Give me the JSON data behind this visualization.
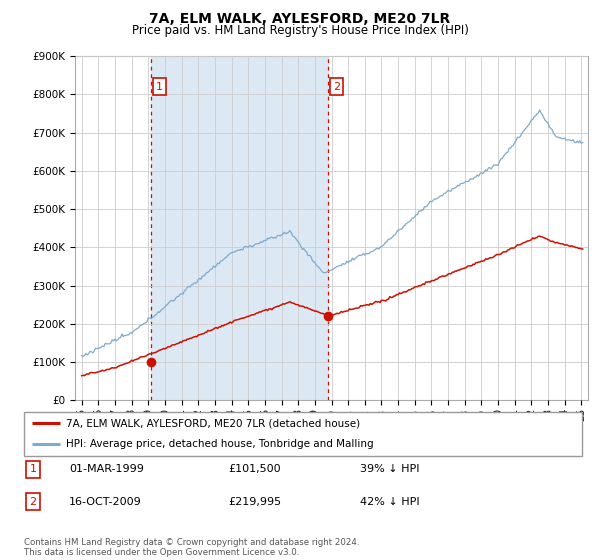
{
  "title": "7A, ELM WALK, AYLESFORD, ME20 7LR",
  "subtitle": "Price paid vs. HM Land Registry's House Price Index (HPI)",
  "ylim": [
    0,
    900000
  ],
  "yticks": [
    0,
    100000,
    200000,
    300000,
    400000,
    500000,
    600000,
    700000,
    800000,
    900000
  ],
  "ytick_labels": [
    "£0",
    "£100K",
    "£200K",
    "£300K",
    "£400K",
    "£500K",
    "£600K",
    "£700K",
    "£800K",
    "£900K"
  ],
  "hpi_color": "#7eaacc",
  "hpi_fill_color": "#dce9f5",
  "price_color": "#cc1100",
  "bg_color": "#ffffff",
  "grid_color": "#cccccc",
  "transactions": [
    {
      "date_num": 1999.17,
      "price": 101500,
      "label": "1"
    },
    {
      "date_num": 2009.79,
      "price": 219995,
      "label": "2"
    }
  ],
  "legend_entries": [
    {
      "label": "7A, ELM WALK, AYLESFORD, ME20 7LR (detached house)",
      "color": "#cc1100"
    },
    {
      "label": "HPI: Average price, detached house, Tonbridge and Malling",
      "color": "#7eaacc"
    }
  ],
  "table_rows": [
    {
      "num": "1",
      "date": "01-MAR-1999",
      "price": "£101,500",
      "pct": "39% ↓ HPI"
    },
    {
      "num": "2",
      "date": "16-OCT-2009",
      "price": "£219,995",
      "pct": "42% ↓ HPI"
    }
  ],
  "footer": "Contains HM Land Registry data © Crown copyright and database right 2024.\nThis data is licensed under the Open Government Licence v3.0.",
  "title_fontsize": 10,
  "subtitle_fontsize": 8.5,
  "tick_fontsize": 7.5,
  "legend_fontsize": 8,
  "table_fontsize": 8
}
